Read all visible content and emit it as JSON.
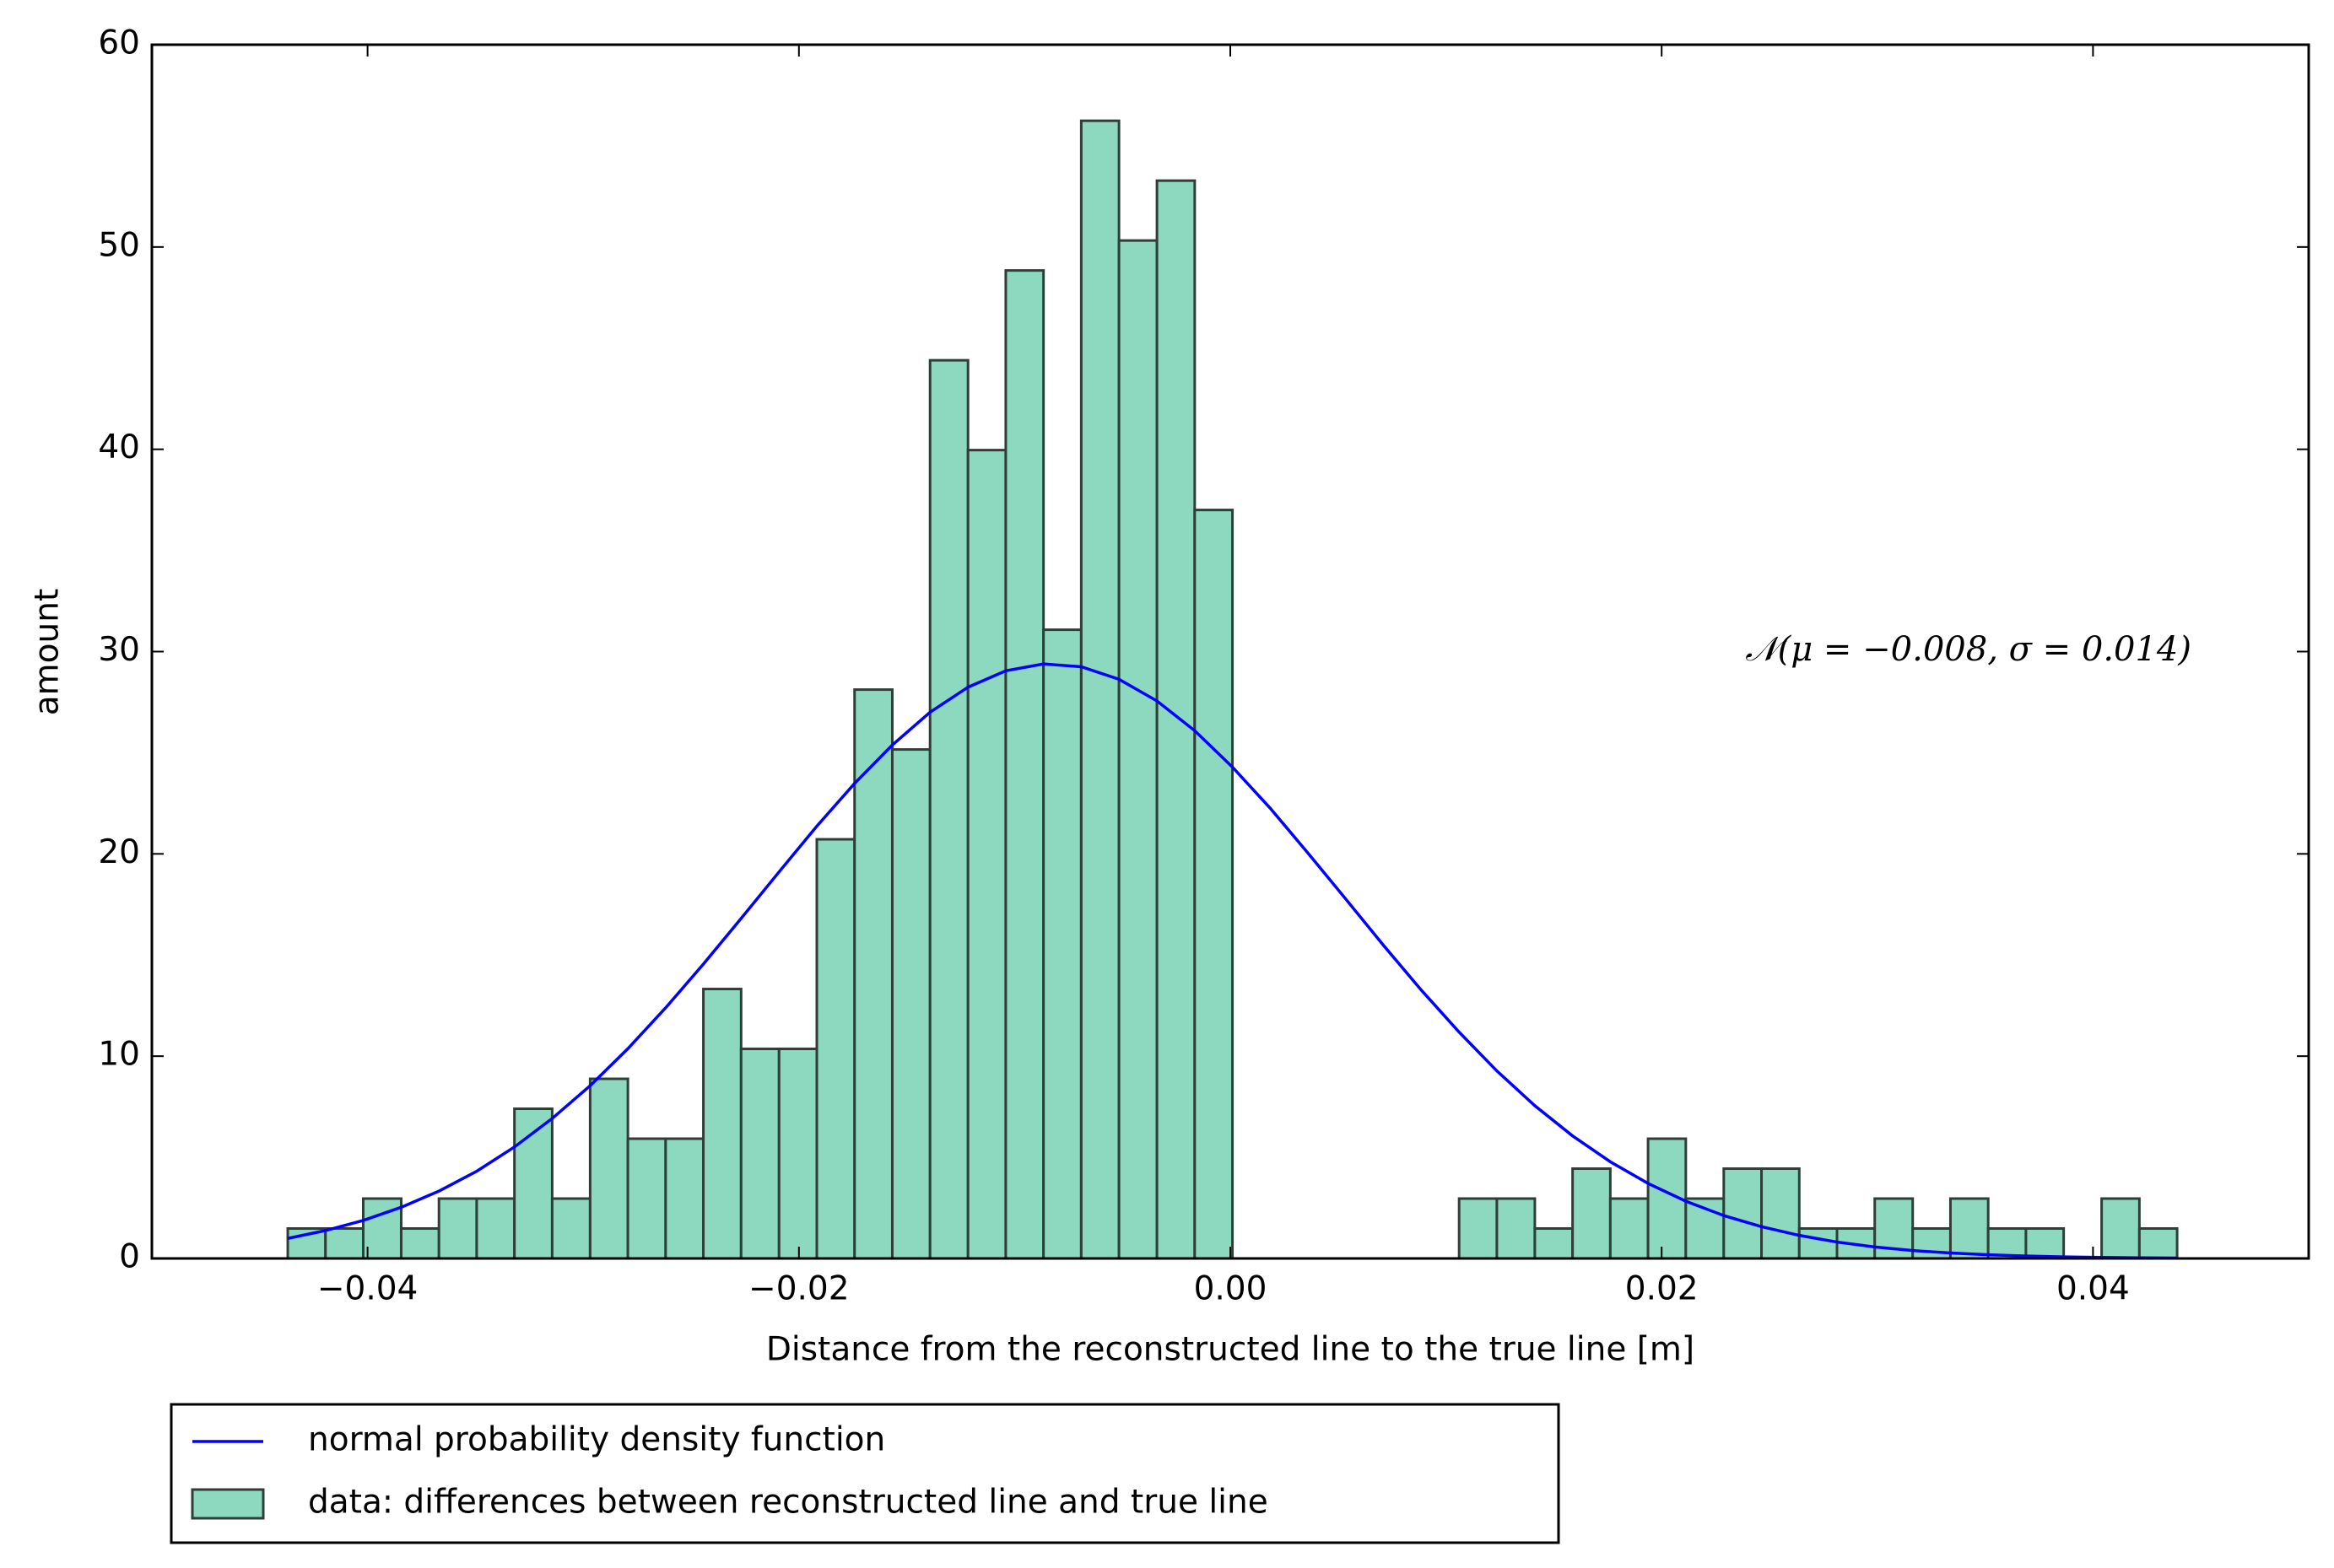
{
  "chart_data": {
    "type": "histogram",
    "xlabel": "Distance from the reconstructed line to the true line [m]",
    "ylabel": "amount",
    "annotation": "𝒩(μ = −0.008, σ = 0.014)",
    "annotation_color": "#0000ff",
    "xlim": [
      -0.05,
      0.05
    ],
    "ylim": [
      0,
      60
    ],
    "xticks": [
      {
        "value": -0.04,
        "label": "−0.04"
      },
      {
        "value": -0.02,
        "label": "−0.02"
      },
      {
        "value": 0,
        "label": "0.00"
      },
      {
        "value": 0.02,
        "label": "0.02"
      },
      {
        "value": 0.04,
        "label": "0.04"
      }
    ],
    "yticks": [
      0,
      10,
      20,
      30,
      40,
      50,
      60
    ],
    "grid": false,
    "legend": "below",
    "name": "data: differences between reconstructed line and true line",
    "color": "#8dd9bf",
    "edgecolor": "#2f3f38",
    "bins": [
      -0.0437,
      -0.04195,
      -0.0402,
      -0.03844,
      -0.03669,
      -0.03494,
      -0.03319,
      -0.03144,
      -0.02968,
      -0.02793,
      -0.02618,
      -0.02443,
      -0.02268,
      -0.02092,
      -0.01917,
      -0.01742,
      -0.01567,
      -0.01392,
      -0.01216,
      -0.01041,
      -0.00866,
      -0.00691,
      -0.00516,
      -0.0034,
      -0.00165,
      0.0001,
      0.00185,
      0.0036,
      0.00536,
      0.00711,
      0.00886,
      0.01061,
      0.01236,
      0.01412,
      0.01587,
      0.01762,
      0.01937,
      0.02112,
      0.02288,
      0.02463,
      0.02638,
      0.02813,
      0.02988,
      0.03164,
      0.03339,
      0.03514,
      0.03689,
      0.03864,
      0.0404,
      0.04215,
      0.0439
    ],
    "values": [
      1.48,
      1.48,
      2.96,
      1.48,
      2.96,
      2.96,
      7.4,
      2.96,
      8.88,
      5.92,
      5.92,
      13.32,
      10.36,
      10.36,
      20.72,
      28.12,
      25.16,
      44.4,
      39.96,
      48.84,
      31.08,
      56.24,
      50.32,
      53.28,
      37.0,
      0,
      0,
      0,
      0,
      0,
      0,
      2.96,
      2.96,
      1.48,
      4.44,
      2.96,
      5.92,
      2.96,
      4.44,
      4.44,
      1.48,
      1.48,
      2.96,
      1.48,
      2.96,
      1.48,
      1.48,
      0,
      2.96,
      1.48
    ],
    "lines": [
      {
        "name": "normal probability density function",
        "color": "#0000ff",
        "x": [
          -0.0437,
          -0.04195,
          -0.0402,
          -0.03844,
          -0.03669,
          -0.03494,
          -0.03319,
          -0.03144,
          -0.02968,
          -0.02793,
          -0.02618,
          -0.02443,
          -0.02268,
          -0.02092,
          -0.01917,
          -0.01742,
          -0.01567,
          -0.01392,
          -0.01216,
          -0.01041,
          -0.00866,
          -0.00691,
          -0.00516,
          -0.0034,
          -0.00165,
          0.0001,
          0.00185,
          0.0036,
          0.00536,
          0.00711,
          0.00886,
          0.01061,
          0.01236,
          0.01412,
          0.01587,
          0.01762,
          0.01937,
          0.02112,
          0.02288,
          0.02463,
          0.02638,
          0.02813,
          0.02988,
          0.03164,
          0.03339,
          0.03514,
          0.03689,
          0.03864,
          0.0404,
          0.04215,
          0.0439
        ],
        "values": [
          0.99,
          1.38,
          1.88,
          2.53,
          3.33,
          4.31,
          5.51,
          6.92,
          8.54,
          10.37,
          12.39,
          14.55,
          16.81,
          19.11,
          21.37,
          23.48,
          25.38,
          27.0,
          28.24,
          29.05,
          29.39,
          29.25,
          28.63,
          27.56,
          26.09,
          24.29,
          22.26,
          20.04,
          17.76,
          15.47,
          13.26,
          11.19,
          9.27,
          7.55,
          6.06,
          4.78,
          3.71,
          2.83,
          2.12,
          1.57,
          1.14,
          0.81,
          0.57,
          0.39,
          0.27,
          0.18,
          0.12,
          0.08,
          0.05,
          0.03,
          0.02
        ]
      }
    ]
  }
}
